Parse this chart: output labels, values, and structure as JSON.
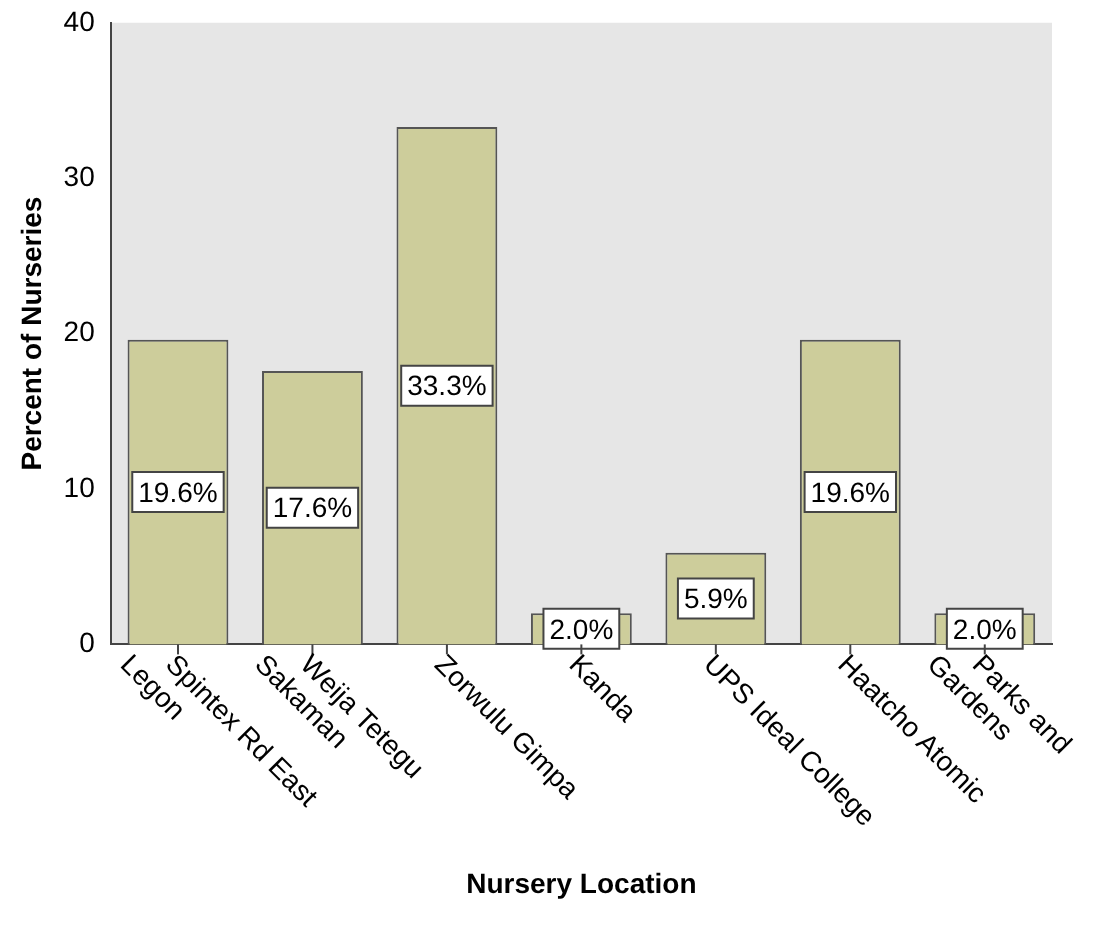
{
  "chart_data": {
    "type": "bar",
    "xlabel": "Nursery Location",
    "ylabel": "Percent of Nurseries",
    "categories": [
      "Spintex Rd East\nLegon",
      "Weija Tetegu\nSakaman",
      "Zorwulu Gimpa",
      "Kanda",
      "UPS Ideal College",
      "Haatcho Atomic",
      "Parks and\nGardens"
    ],
    "values": [
      19.6,
      17.6,
      33.3,
      2.0,
      5.9,
      19.6,
      2.0
    ],
    "value_labels": [
      "19.6%",
      "17.6%",
      "33.3%",
      "2.0%",
      "5.9%",
      "19.6%",
      "2.0%"
    ],
    "color": "#cdcd9b",
    "ylim": [
      0,
      40
    ],
    "yticks": [
      0,
      10,
      20,
      30,
      40
    ],
    "grid": false,
    "legend": false
  }
}
